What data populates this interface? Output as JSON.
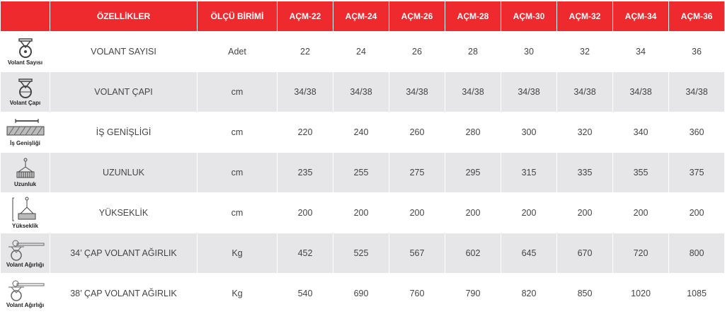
{
  "header": {
    "features": "ÖZELLİKLER",
    "unit": "ÖLÇÜ BİRİMİ",
    "models": [
      "AÇM-22",
      "AÇM-24",
      "AÇM-26",
      "AÇM-28",
      "AÇM-30",
      "AÇM-32",
      "AÇM-34",
      "AÇM-36"
    ]
  },
  "rows": [
    {
      "icon": "wheel-icon",
      "icon_label": "Volant Sayısı",
      "feature": "VOLANT SAYISI",
      "unit": "Adet",
      "values": [
        "22",
        "24",
        "26",
        "28",
        "30",
        "32",
        "34",
        "36"
      ]
    },
    {
      "icon": "wheel-diameter-icon",
      "icon_label": "Volant Çapı",
      "feature": "VOLANT ÇAPI",
      "unit": "cm",
      "values": [
        "34/38",
        "34/38",
        "34/38",
        "34/38",
        "34/38",
        "34/38",
        "34/38",
        "34/38"
      ]
    },
    {
      "icon": "work-width-icon",
      "icon_label": "İş Genişliği",
      "feature": "İŞ GENİŞLİGİ",
      "unit": "cm",
      "values": [
        "220",
        "240",
        "260",
        "280",
        "300",
        "320",
        "340",
        "360"
      ]
    },
    {
      "icon": "length-icon",
      "icon_label": "Uzunluk",
      "feature": "UZUNLUK",
      "unit": "cm",
      "values": [
        "235",
        "255",
        "275",
        "295",
        "315",
        "335",
        "355",
        "375"
      ]
    },
    {
      "icon": "height-icon",
      "icon_label": "Yükseklik",
      "feature": "YÜKSEKLİK",
      "unit": "cm",
      "values": [
        "200",
        "200",
        "200",
        "200",
        "200",
        "200",
        "200",
        "200"
      ]
    },
    {
      "icon": "wheel-weight-icon",
      "icon_label": "Volant Ağırlığı",
      "feature": "34’ ÇAP VOLANT AĞIRLIK",
      "unit": "Kg",
      "values": [
        "452",
        "525",
        "567",
        "602",
        "645",
        "670",
        "720",
        "800"
      ]
    },
    {
      "icon": "wheel-weight-icon",
      "icon_label": "Volant Ağırlığı",
      "feature": "38’ ÇAP VOLANT AĞIRLIK",
      "unit": "Kg",
      "values": [
        "540",
        "690",
        "760",
        "790",
        "820",
        "850",
        "1020",
        "1085"
      ]
    }
  ],
  "colors": {
    "header": "#ee2a2f",
    "stripe": "#e6e6e8"
  }
}
